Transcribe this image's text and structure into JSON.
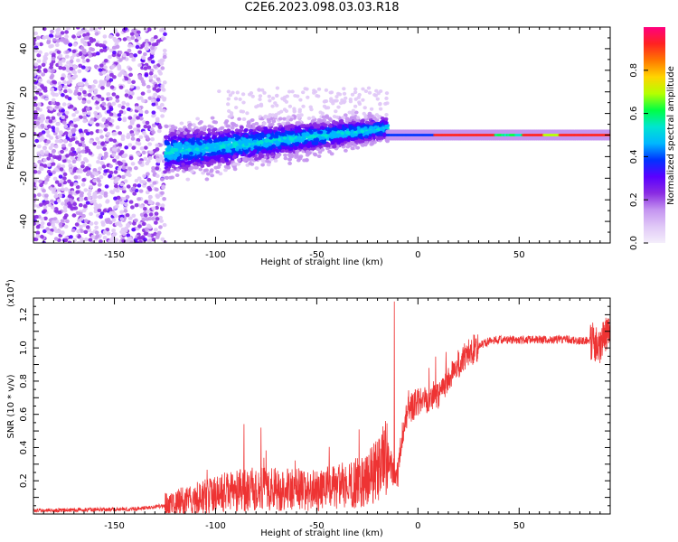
{
  "figure_title": "C2E6.2023.098.03.03.R18",
  "chart_data": [
    {
      "type": "heatmap",
      "title": "",
      "xlabel": "Height of straight line (km)",
      "ylabel": "Frequency (Hz)",
      "xlim": [
        -190,
        95
      ],
      "ylim": [
        -50,
        50
      ],
      "xticks": [
        -150,
        -100,
        -50,
        0,
        50
      ],
      "yticks": [
        -40,
        -20,
        0,
        20,
        40
      ],
      "signal_band": {
        "noise_region_x": [
          -190,
          -125
        ],
        "noise_region_y": [
          -50,
          50
        ],
        "spread_region_x": [
          -125,
          -15
        ],
        "spread_center_y": [
          -8,
          3
        ],
        "spread_halfwidth": [
          12,
          6
        ],
        "narrow_band_x": [
          -15,
          95
        ],
        "narrow_band_y": 0
      },
      "colorbar": {
        "label": "Normalized spectral amplitude",
        "range": [
          0.0,
          1.0
        ],
        "ticks": [
          0.0,
          0.2,
          0.4,
          0.6,
          0.8
        ],
        "colors": [
          "#f4eefb",
          "#e0c8f7",
          "#c494f0",
          "#8a2be2",
          "#5a00ff",
          "#0033ff",
          "#00b7ff",
          "#00e5d0",
          "#00ff44",
          "#b5ff00",
          "#ffd400",
          "#ff7700",
          "#ff2222",
          "#ff007f"
        ]
      }
    },
    {
      "type": "line",
      "title": "",
      "xlabel": "Height of straight line (km)",
      "ylabel": "SNR (10 * v/v)",
      "multiplier_label": "(x10",
      "multiplier_exp": "4",
      "multiplier_close": ")",
      "xlim": [
        -190,
        95
      ],
      "ylim": [
        0.0,
        1.3
      ],
      "xticks": [
        -150,
        -100,
        -50,
        0,
        50
      ],
      "yticks": [
        0.2,
        0.4,
        0.6,
        0.8,
        1.0,
        1.2
      ],
      "series": [
        {
          "name": "SNR",
          "color": "#ee3333",
          "x": [
            -190,
            -140,
            -125,
            -110,
            -100,
            -90,
            -80,
            -70,
            -60,
            -50,
            -40,
            -30,
            -25,
            -20,
            -15,
            -12,
            -10,
            -8,
            -5,
            0,
            5,
            10,
            15,
            20,
            25,
            30,
            35,
            40,
            50,
            60,
            70,
            75,
            80,
            85,
            88,
            90,
            92,
            95
          ],
          "y": [
            0.02,
            0.03,
            0.05,
            0.09,
            0.12,
            0.14,
            0.15,
            0.15,
            0.15,
            0.14,
            0.16,
            0.19,
            0.22,
            0.26,
            0.35,
            0.25,
            0.22,
            0.45,
            0.62,
            0.68,
            0.7,
            0.72,
            0.82,
            0.9,
            0.97,
            1.01,
            1.04,
            1.05,
            1.05,
            1.05,
            1.05,
            1.05,
            1.04,
            1.05,
            1.02,
            0.98,
            1.08,
            1.1
          ]
        }
      ]
    }
  ]
}
